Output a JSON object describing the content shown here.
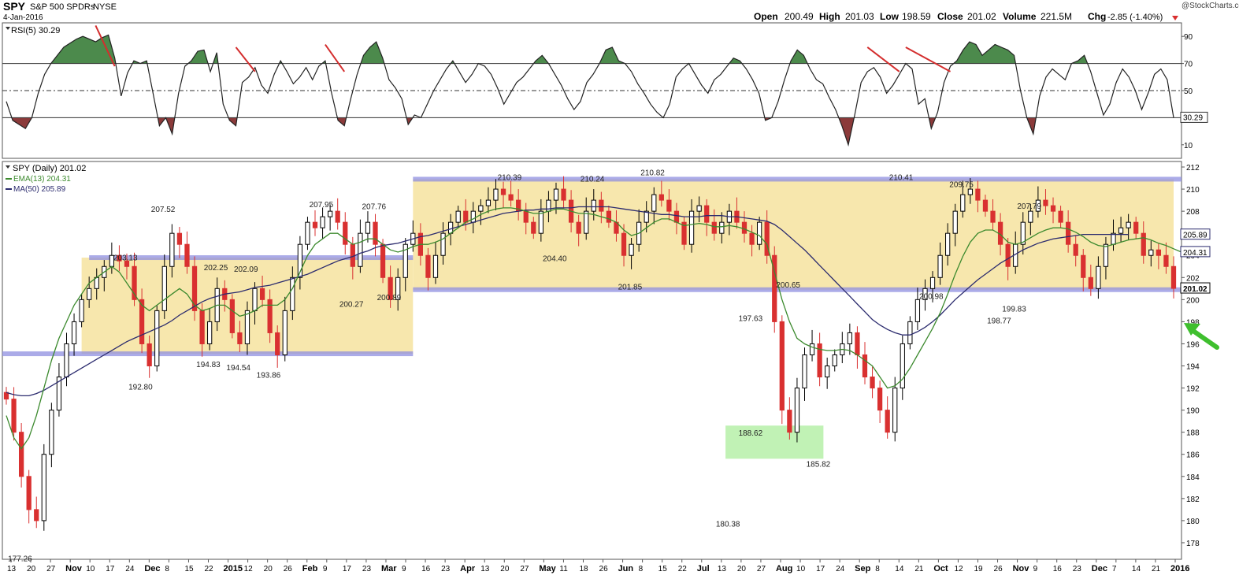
{
  "header": {
    "symbol": "SPY",
    "name": "S&P 500 SPDRs",
    "exchange": "NYSE",
    "date": "4-Jan-2016",
    "watermark": "@StockCharts.com",
    "open_label": "Open",
    "open": "200.49",
    "high_label": "High",
    "high": "201.03",
    "low_label": "Low",
    "low": "198.59",
    "close_label": "Close",
    "close": "201.02",
    "volume_label": "Volume",
    "volume": "221.5M",
    "chg_label": "Chg",
    "chg": "-2.85 (-1.40%)"
  },
  "colors": {
    "up_candle": "#000000",
    "down_candle": "#d93030",
    "ema": "#3c8a2e",
    "ma": "#2b2b6e",
    "band_fill": "#f7e7ad",
    "resistance": "#8f8fe0",
    "green_box": "#b6f0a8",
    "rsi_fill_high": "#4c8a4c",
    "rsi_fill_low": "#8b3a3a",
    "divergence": "#d42e2e",
    "arrow": "#3fbf2e"
  },
  "chart_data": [
    {
      "type": "line",
      "title": "RSI(5) 30.29",
      "ylim": [
        0,
        100
      ],
      "yticks": [
        10,
        30,
        50,
        70,
        90
      ],
      "reference_lines": [
        70,
        50,
        30
      ],
      "last_value_label": "30.29",
      "series": [
        {
          "values": [
            42,
            28,
            25,
            22,
            30,
            48,
            62,
            70,
            76,
            82,
            85,
            88,
            90,
            88,
            86,
            89,
            91,
            74,
            46,
            63,
            72,
            70,
            72,
            48,
            24,
            30,
            18,
            48,
            68,
            72,
            79,
            80,
            64,
            78,
            40,
            28,
            24,
            56,
            60,
            67,
            54,
            48,
            62,
            72,
            64,
            55,
            60,
            67,
            58,
            68,
            72,
            48,
            28,
            24,
            44,
            62,
            76,
            82,
            86,
            74,
            58,
            52,
            44,
            25,
            32,
            30,
            40,
            50,
            58,
            66,
            72,
            64,
            56,
            62,
            70,
            68,
            62,
            52,
            40,
            48,
            56,
            60,
            66,
            72,
            76,
            70,
            62,
            54,
            44,
            36,
            42,
            56,
            62,
            70,
            80,
            82,
            72,
            70,
            64,
            55,
            48,
            40,
            34,
            30,
            40,
            60,
            66,
            70,
            62,
            54,
            48,
            58,
            62,
            68,
            74,
            72,
            66,
            58,
            48,
            28,
            30,
            42,
            58,
            72,
            80,
            76,
            66,
            58,
            55,
            45,
            36,
            24,
            10,
            32,
            56,
            64,
            67,
            60,
            48,
            54,
            62,
            70,
            66,
            40,
            44,
            22,
            34,
            56,
            68,
            72,
            80,
            86,
            84,
            76,
            80,
            84,
            82,
            80,
            76,
            50,
            30,
            18,
            46,
            60,
            66,
            62,
            58,
            70,
            72,
            76,
            64,
            48,
            32,
            40,
            56,
            66,
            60,
            50,
            36,
            48,
            62,
            66,
            58,
            30
          ]
        }
      ]
    },
    {
      "type": "candlestick",
      "title": "SPY (Daily) 201.02",
      "ylim": [
        176.5,
        212.5
      ],
      "yticks": [
        178,
        180,
        182,
        184,
        186,
        188,
        190,
        192,
        194,
        196,
        198,
        200,
        202,
        204,
        206,
        208,
        210,
        212
      ],
      "x_ticks": [
        "13",
        "20",
        "27",
        "Nov",
        "10",
        "17",
        "24",
        "Dec",
        "8",
        "15",
        "22",
        "2015",
        "12",
        "20",
        "26",
        "Feb",
        "9",
        "17",
        "23",
        "Mar",
        "9",
        "16",
        "23",
        "Apr",
        "13",
        "20",
        "27",
        "May",
        "11",
        "18",
        "26",
        "Jun",
        "8",
        "15",
        "22",
        "Jul",
        "13",
        "20",
        "27",
        "Aug",
        "10",
        "17",
        "24",
        "Sep",
        "8",
        "14",
        "21",
        "Oct",
        "12",
        "19",
        "26",
        "Nov",
        "9",
        "16",
        "23",
        "Dec",
        "7",
        "14",
        "21",
        "2016"
      ],
      "bold_ticks": [
        "Nov",
        "Dec",
        "2015",
        "Feb",
        "Mar",
        "Apr",
        "May",
        "Jun",
        "Jul",
        "Aug",
        "Sep",
        "Oct",
        "2016"
      ],
      "closes": [
        191,
        188,
        184,
        181,
        180,
        186,
        190,
        193,
        196,
        198,
        200,
        201,
        202,
        203,
        204,
        203.5,
        203,
        200,
        196,
        194,
        199,
        203,
        206,
        205,
        203,
        199,
        196,
        198,
        201,
        200,
        197,
        196,
        199,
        201,
        200,
        197,
        195,
        199,
        202,
        205,
        207,
        206.5,
        207.5,
        208,
        207,
        205,
        203,
        206,
        207,
        205,
        202,
        200,
        202,
        205,
        206,
        204,
        202,
        204,
        206,
        207,
        208,
        207,
        208,
        208.5,
        209,
        210,
        209.5,
        209,
        208,
        207,
        206,
        208,
        209,
        210,
        209,
        207,
        206,
        208,
        209,
        208,
        207,
        206,
        204,
        205,
        207,
        208,
        209.5,
        209,
        208,
        207,
        205,
        208,
        208.5,
        207,
        206,
        207,
        208,
        207,
        206,
        205,
        207,
        204,
        198,
        190,
        188,
        192,
        195,
        196,
        193,
        194,
        195,
        196,
        197,
        195,
        193,
        192,
        190,
        188,
        192,
        196,
        198,
        200,
        201,
        202,
        204,
        206,
        208,
        209.5,
        210,
        209,
        208,
        207,
        205,
        203,
        205,
        207,
        208,
        209,
        208.5,
        208,
        207,
        205,
        204,
        202,
        201,
        203,
        205,
        206,
        206.5,
        207,
        206,
        204,
        204.5,
        204,
        203,
        201.02
      ],
      "ema13": [
        189.5,
        187.5,
        186.5,
        187.5,
        189.5,
        192,
        194.5,
        196.5,
        198,
        199.5,
        200.5,
        201.5,
        202,
        202.5,
        203,
        202.5,
        201.5,
        200.5,
        199.5,
        199,
        199.5,
        200,
        200.5,
        201,
        200.5,
        199.5,
        199,
        199.2,
        199.5,
        199.5,
        199,
        198.5,
        198.7,
        199,
        199.5,
        199.5,
        199.5,
        200,
        201,
        202.5,
        204,
        205,
        205.5,
        206,
        206,
        205.5,
        205,
        205.2,
        205.5,
        205.5,
        205,
        204.5,
        204.3,
        204.5,
        204.8,
        205,
        205,
        205.2,
        205.5,
        206,
        206.5,
        207,
        207.3,
        207.7,
        208,
        208.2,
        208.3,
        208.3,
        208.2,
        208,
        207.8,
        207.8,
        208,
        208.2,
        208.2,
        208,
        207.8,
        207.8,
        207.7,
        207.5,
        207.3,
        207,
        206.3,
        205.8,
        206,
        206.5,
        207,
        207.3,
        207.3,
        207,
        206.7,
        206.8,
        206.9,
        206.8,
        206.6,
        206.6,
        206.7,
        206.6,
        206.4,
        206.1,
        205.8,
        205,
        202.5,
        200,
        198,
        196.5,
        196,
        195.7,
        195.5,
        195.4,
        195.4,
        195.5,
        195.4,
        195,
        194.5,
        194,
        193,
        192,
        192.2,
        192.8,
        193.8,
        195,
        196.2,
        197.4,
        198.8,
        200.5,
        202.3,
        203.9,
        205.2,
        206,
        206.3,
        206.3,
        205.9,
        205.2,
        205,
        205.2,
        205.6,
        206,
        206.3,
        206.5,
        206.5,
        206.4,
        206.1,
        205.7,
        205.2,
        204.9,
        204.8,
        205,
        205.2,
        205.4,
        205.5,
        205.6,
        205.4,
        205.1,
        204.9,
        204.6,
        204.31
      ],
      "ma50": [
        191.6,
        191.4,
        191.3,
        191.3,
        191.5,
        191.8,
        192.2,
        192.6,
        193,
        193.4,
        193.8,
        194.2,
        194.6,
        195,
        195.4,
        195.8,
        196.2,
        196.5,
        196.8,
        197.1,
        197.4,
        197.7,
        198.1,
        198.6,
        199,
        199.4,
        199.8,
        200.1,
        200.3,
        200.5,
        200.6,
        200.7,
        200.9,
        201.1,
        201.2,
        201.3,
        201.5,
        201.7,
        201.9,
        202.1,
        202.3,
        202.6,
        202.9,
        203.2,
        203.5,
        203.7,
        203.9,
        204.2,
        204.4,
        204.7,
        204.9,
        205,
        205.1,
        205.3,
        205.5,
        205.7,
        205.8,
        206,
        206.2,
        206.4,
        206.6,
        206.8,
        207,
        207.2,
        207.4,
        207.6,
        207.8,
        207.9,
        208,
        208.1,
        208.1,
        208.2,
        208.2,
        208.3,
        208.3,
        208.3,
        208.4,
        208.4,
        208.4,
        208.4,
        208.4,
        208.3,
        208.2,
        208.1,
        208,
        207.9,
        207.8,
        207.7,
        207.7,
        207.6,
        207.5,
        207.5,
        207.5,
        207.6,
        207.6,
        207.6,
        207.5,
        207.5,
        207.4,
        207.3,
        207.2,
        207.1,
        206.8,
        206.3,
        205.7,
        205.1,
        204.5,
        203.8,
        203.1,
        202.4,
        201.7,
        201,
        200.3,
        199.6,
        198.9,
        198.2,
        197.7,
        197.3,
        197,
        196.8,
        196.8,
        197.1,
        197.5,
        198,
        198.6,
        199.3,
        200,
        200.6,
        201.2,
        201.8,
        202.3,
        202.8,
        203.3,
        203.7,
        204.1,
        204.5,
        204.8,
        205.1,
        205.3,
        205.5,
        205.6,
        205.7,
        205.8,
        205.9,
        205.9,
        205.9,
        205.9,
        205.9,
        205.9,
        205.89
      ],
      "legend": [
        {
          "name": "SPY (Daily) 201.02",
          "color": "#000000"
        },
        {
          "name": "EMA(13) 204.31",
          "color": "#3c8a2e"
        },
        {
          "name": "MA(50) 205.89",
          "color": "#2b2b6e"
        }
      ],
      "price_tags": [
        "205.89",
        "204.31",
        "201.02",
        "200"
      ],
      "resistance_levels": [
        195.1,
        203.8,
        210.9,
        200.9
      ],
      "annotations": [
        {
          "text": "177.26",
          "x": 2,
          "y": 177.26
        },
        {
          "text": "192.80",
          "x": 18,
          "y": 192.8
        },
        {
          "text": "207.52",
          "x": 21,
          "y": 207.52
        },
        {
          "text": "203.13",
          "x": 16,
          "y": 203.13
        },
        {
          "text": "202.25",
          "x": 28,
          "y": 202.25
        },
        {
          "text": "202.09",
          "x": 32,
          "y": 202.09
        },
        {
          "text": "194.83",
          "x": 27,
          "y": 194.83
        },
        {
          "text": "194.54",
          "x": 31,
          "y": 194.54
        },
        {
          "text": "193.86",
          "x": 35,
          "y": 193.86
        },
        {
          "text": "207.95",
          "x": 42,
          "y": 207.95
        },
        {
          "text": "207.76",
          "x": 49,
          "y": 207.76
        },
        {
          "text": "200.27",
          "x": 46,
          "y": 200.27
        },
        {
          "text": "200.89",
          "x": 51,
          "y": 200.89
        },
        {
          "text": "210.39",
          "x": 67,
          "y": 210.39
        },
        {
          "text": "204.40",
          "x": 73,
          "y": 204.4
        },
        {
          "text": "210.24",
          "x": 78,
          "y": 210.24
        },
        {
          "text": "201.85",
          "x": 83,
          "y": 201.85
        },
        {
          "text": "210.82",
          "x": 86,
          "y": 210.82
        },
        {
          "text": "197.63",
          "x": 99,
          "y": 197.63
        },
        {
          "text": "200.65",
          "x": 104,
          "y": 200.65
        },
        {
          "text": "188.62",
          "x": 99,
          "y": 188.62
        },
        {
          "text": "180.38",
          "x": 96,
          "y": 180.38
        },
        {
          "text": "185.82",
          "x": 108,
          "y": 185.82
        },
        {
          "text": "210.41",
          "x": 119,
          "y": 210.41
        },
        {
          "text": "209.75",
          "x": 127,
          "y": 209.75
        },
        {
          "text": "200.98",
          "x": 123,
          "y": 200.98
        },
        {
          "text": "207.79",
          "x": 136,
          "y": 207.79
        },
        {
          "text": "198.77",
          "x": 132,
          "y": 198.77
        },
        {
          "text": "199.83",
          "x": 134,
          "y": 199.83
        }
      ]
    }
  ]
}
